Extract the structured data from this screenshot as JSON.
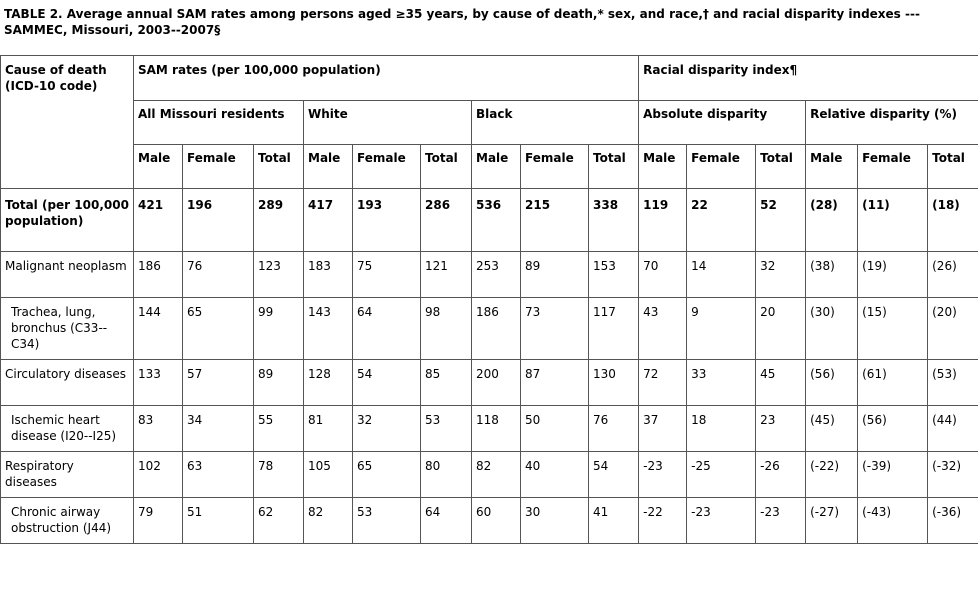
{
  "caption": "TABLE 2. Average annual SAM rates among persons aged ≥35 years, by cause of death,* sex, and race,† and racial disparity indexes --- SAMMEC, Missouri, 2003--2007§",
  "header": {
    "cause": "Cause of death (ICD-10 code)",
    "sam_rates": "SAM rates (per 100,000 population)",
    "disparity": "Racial disparity index¶",
    "groups": [
      "All Missouri residents",
      "White",
      "Black",
      "Absolute disparity",
      "Relative disparity (%)"
    ],
    "sub": [
      "Male",
      "Female",
      "Total"
    ]
  },
  "rows": [
    {
      "cause": "Total (per 100,000 population)",
      "values": [
        "421",
        "196",
        "289",
        "417",
        "193",
        "286",
        "536",
        "215",
        "338",
        "119",
        "22",
        "52",
        "(28)",
        "(11)",
        "(18)"
      ]
    },
    {
      "cause": "Malignant neoplasm",
      "values": [
        "186",
        "76",
        "123",
        "183",
        "75",
        "121",
        "253",
        "89",
        "153",
        "70",
        "14",
        "32",
        "(38)",
        "(19)",
        "(26)"
      ]
    },
    {
      "cause": "Trachea, lung, bronchus (C33--C34)",
      "values": [
        "144",
        "65",
        "99",
        "143",
        "64",
        "98",
        "186",
        "73",
        "117",
        "43",
        "9",
        "20",
        "(30)",
        "(15)",
        "(20)"
      ]
    },
    {
      "cause": "Circulatory diseases",
      "values": [
        "133",
        "57",
        "89",
        "128",
        "54",
        "85",
        "200",
        "87",
        "130",
        "72",
        "33",
        "45",
        "(56)",
        "(61)",
        "(53)"
      ]
    },
    {
      "cause": "Ischemic heart disease (I20--I25)",
      "values": [
        "83",
        "34",
        "55",
        "81",
        "32",
        "53",
        "118",
        "50",
        "76",
        "37",
        "18",
        "23",
        "(45)",
        "(56)",
        "(44)"
      ]
    },
    {
      "cause": "Respiratory diseases",
      "values": [
        "102",
        "63",
        "78",
        "105",
        "65",
        "80",
        "82",
        "40",
        "54",
        "-23",
        "-25",
        "-26",
        "(-22)",
        "(-39)",
        "(-32)"
      ]
    },
    {
      "cause": "Chronic airway obstruction (J44)",
      "values": [
        "79",
        "51",
        "62",
        "82",
        "53",
        "64",
        "60",
        "30",
        "41",
        "-22",
        "-23",
        "-23",
        "(-27)",
        "(-43)",
        "(-36)"
      ]
    }
  ]
}
